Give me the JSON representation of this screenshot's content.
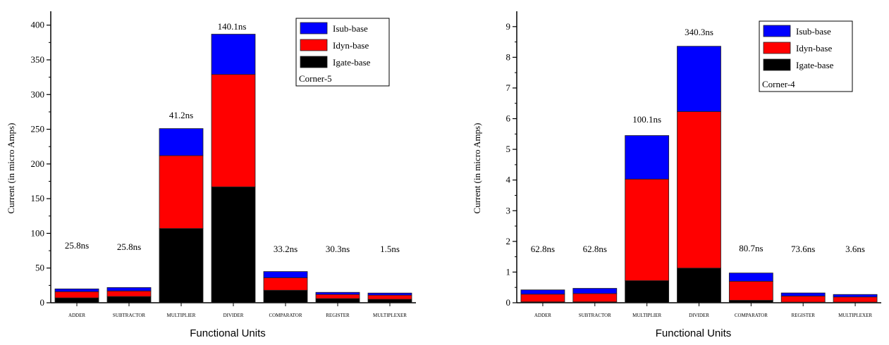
{
  "chart_data": [
    {
      "type": "bar",
      "stacked": true,
      "xlabel": "Functional Units",
      "ylabel": "Current (in micro Amps)",
      "ylim": [
        0,
        420
      ],
      "yticks": [
        0,
        50,
        100,
        150,
        200,
        250,
        300,
        350,
        400
      ],
      "categories": [
        "ADDER",
        "SUBTRACTOR",
        "MULTIPLIER",
        "DIVIDER",
        "COMPARATOR",
        "REGISTER",
        "MULTIPLEXER"
      ],
      "series": [
        {
          "name": "Igate-base",
          "color": "#000000",
          "values": [
            7,
            9,
            107,
            167,
            18,
            6,
            5
          ]
        },
        {
          "name": "Idyn-base",
          "color": "#ff0000",
          "values": [
            9,
            8,
            105,
            162,
            18,
            6,
            6
          ]
        },
        {
          "name": "Isub-base",
          "color": "#0000ff",
          "values": [
            4,
            5,
            39,
            58,
            9,
            3,
            3
          ]
        }
      ],
      "annotations": [
        "25.8ns",
        "25.8ns",
        "41.2ns",
        "140.1ns",
        "33.2ns",
        "30.3ns",
        "1.5ns"
      ],
      "legend": {
        "position": "top-right",
        "note": "Corner-5"
      },
      "grid": false
    },
    {
      "type": "bar",
      "stacked": true,
      "xlabel": "Functional Units",
      "ylabel": "Current (in micro Amps)",
      "ylim": [
        0,
        9.5
      ],
      "yticks": [
        0,
        1,
        2,
        3,
        4,
        5,
        6,
        7,
        8,
        9
      ],
      "categories": [
        "ADDER",
        "SUBTRACTOR",
        "MULTIPLIER",
        "DIVIDER",
        "COMPARATOR",
        "REGISTER",
        "MULTIPLEXER"
      ],
      "series": [
        {
          "name": "Igate-base",
          "color": "#000000",
          "values": [
            0.03,
            0.03,
            0.72,
            1.13,
            0.08,
            0.02,
            0.02
          ]
        },
        {
          "name": "Idyn-base",
          "color": "#ff0000",
          "values": [
            0.25,
            0.27,
            3.31,
            5.1,
            0.62,
            0.2,
            0.17
          ]
        },
        {
          "name": "Isub-base",
          "color": "#0000ff",
          "values": [
            0.14,
            0.17,
            1.42,
            2.13,
            0.27,
            0.1,
            0.08
          ]
        }
      ],
      "annotations": [
        "62.8ns",
        "62.8ns",
        "100.1ns",
        "340.3ns",
        "80.7ns",
        "73.6ns",
        "3.6ns"
      ],
      "legend": {
        "position": "top-right",
        "note": "Corner-4"
      },
      "grid": false
    }
  ]
}
